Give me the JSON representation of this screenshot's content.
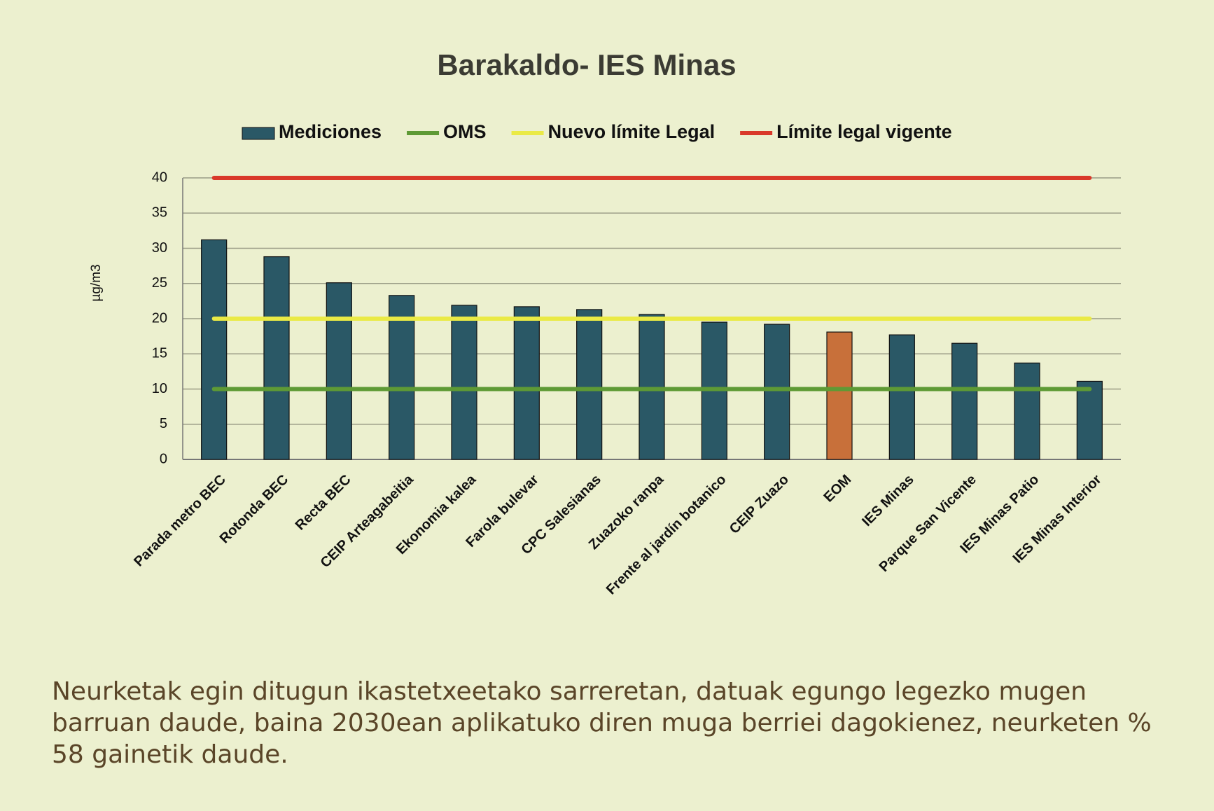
{
  "chart_data": {
    "type": "bar",
    "title": "Barakaldo- IES Minas",
    "y_label": "µg/m3",
    "categories": [
      "Parada metro BEC",
      "Rotonda BEC",
      "Recta BEC",
      "CEIP Arteagabeitia",
      "Ekonomia kalea",
      "Farola bulevar",
      "CPC Salesianas",
      "Zuazoko ranpa",
      "Frente al jardín botanico",
      "CEIP Zuazo",
      "EOM",
      "IES Minas",
      "Parque San Vicente",
      "IES Minas Patio",
      "IES Minas Interior"
    ],
    "series": [
      {
        "name": "Mediciones",
        "type": "bar",
        "color": "#2a5866",
        "colors": [
          "#2a5866",
          "#2a5866",
          "#2a5866",
          "#2a5866",
          "#2a5866",
          "#2a5866",
          "#2a5866",
          "#2a5866",
          "#2a5866",
          "#2a5866",
          "#c8703a",
          "#2a5866",
          "#2a5866",
          "#2a5866",
          "#2a5866"
        ],
        "values": [
          31.2,
          28.8,
          25.1,
          23.3,
          21.9,
          21.7,
          21.3,
          20.6,
          19.5,
          19.2,
          18.1,
          17.7,
          16.5,
          13.7,
          11.1
        ]
      },
      {
        "name": "OMS",
        "type": "line",
        "color": "#5e9a35",
        "values": [
          10,
          10,
          10,
          10,
          10,
          10,
          10,
          10,
          10,
          10,
          10,
          10,
          10,
          10,
          10
        ]
      },
      {
        "name": "Nuevo límite Legal",
        "type": "line",
        "color": "#eaea45",
        "values": [
          20,
          20,
          20,
          20,
          20,
          20,
          20,
          20,
          20,
          20,
          20,
          20,
          20,
          20,
          20
        ]
      },
      {
        "name": "Límite legal vigente",
        "type": "line",
        "color": "#d9392a",
        "values": [
          40,
          40,
          40,
          40,
          40,
          40,
          40,
          40,
          40,
          40,
          40,
          40,
          40,
          40,
          40
        ]
      }
    ],
    "ylim": [
      0,
      40
    ],
    "yticks": [
      0,
      5,
      10,
      15,
      20,
      25,
      30,
      35,
      40
    ],
    "grid": true,
    "legend": "top",
    "note": "Neurketak egin ditugun ikastetxeetako sarreretan, datuak egungo legezko mugen barruan daude, baina 2030ean aplikatuko diren muga berriei dagokienez, neurketen % 58 gainetik daude."
  }
}
